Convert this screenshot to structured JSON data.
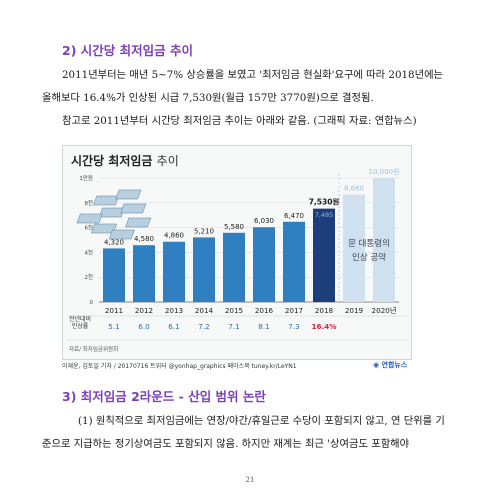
{
  "section2": {
    "heading": "2) 시간당 최저임금 추이",
    "p1_line1": "2011년부터는 매년 5~7% 상승률을 보였고 '최저임금 현실화'요구에 따라 2018년에는",
    "p1_line2": "올해보다 16.4%가 인상된 시급 7,530원(월급 157만 3770원)으로 결정됨.",
    "p2": "참고로 2011년부터 시간당 최저임금 추이는 아래와 같음. (그래픽 자료: 연합뉴스)"
  },
  "chart_data": {
    "type": "bar",
    "title": "시간당 최저임금",
    "title_suffix": "추이",
    "categories": [
      "2011",
      "2012",
      "2013",
      "2014",
      "2015",
      "2016",
      "2017",
      "2018",
      "2019",
      "2020년"
    ],
    "values": [
      4320,
      4580,
      4860,
      5210,
      5580,
      6030,
      6470,
      7530,
      8660,
      10000
    ],
    "value_labels": [
      "4,320",
      "4,580",
      "4,860",
      "5,210",
      "5,580",
      "6,030",
      "6,470",
      "7,530원",
      "8,660",
      "10,000원"
    ],
    "projection_inner_labels": [
      "7,485"
    ],
    "yticks": [
      "0",
      "2천",
      "4천",
      "6천",
      "8천",
      "1만원"
    ],
    "ylim": [
      0,
      10000
    ],
    "annotation": "문 대통령의\n인상 공약",
    "rate_label": "전년대비\n인상률",
    "rates": [
      "5.1",
      "6.0",
      "6.1",
      "7.2",
      "7.1",
      "8.1",
      "7.3",
      "16.4%"
    ],
    "source": "자료/ 최저임금위원회",
    "colors": {
      "actual": "#2f7fc1",
      "highlight": "#1c3f7a",
      "projection": "#cfe0ee",
      "projection_text": "#9fbfdc"
    }
  },
  "credit": {
    "text": "이재윤, 김토일 기자 / 20170716 트위터 @yonhap_graphics 페이스북 tuney.kr/LeYN1"
  },
  "logo": {
    "text": "연합뉴스"
  },
  "section3": {
    "heading": "3) 최저임금 2라운드 - 산입 범위 논란",
    "p1_line1": "(1) 원칙적으로 최저임금에는 연장/야간/휴일근로 수당이 포함되지 않고, 연 단위를 기",
    "p1_line2": "준으로 지급하는 정기상여금도 포함되지 않음. 하지만 재계는 최근 '상여금도 포함해야"
  },
  "page": {
    "number": "21"
  }
}
